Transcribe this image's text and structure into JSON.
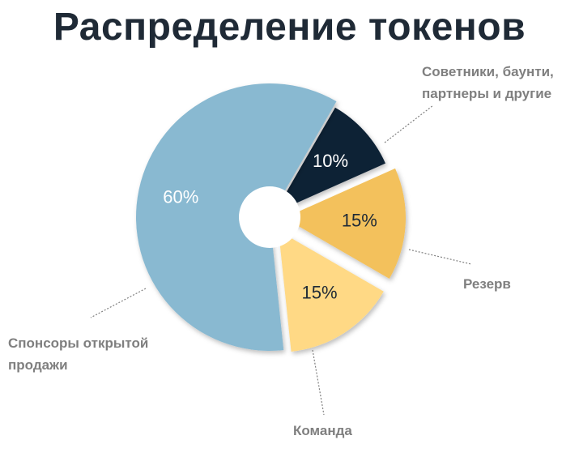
{
  "chart_data": {
    "type": "pie",
    "title": "Распределение токенов",
    "slices": [
      {
        "label": "Советники, баунти, партнеры и другие",
        "label_lines": [
          "Советники, баунти,",
          "партнеры и другие"
        ],
        "value": 10,
        "value_label": "10%",
        "color": "#0d2236"
      },
      {
        "label": "Резерв",
        "label_lines": [
          "Резерв"
        ],
        "value": 15,
        "value_label": "15%",
        "color": "#f3c15c"
      },
      {
        "label": "Команда",
        "label_lines": [
          "Команда"
        ],
        "value": 15,
        "value_label": "15%",
        "color": "#ffd985"
      },
      {
        "label": "Спонсоры открытой продажи",
        "label_lines": [
          "Спонсоры открытой",
          "продажи"
        ],
        "value": 60,
        "value_label": "60%",
        "color": "#89b9d1"
      }
    ],
    "legend": "callouts",
    "style": "donut-exploded"
  }
}
